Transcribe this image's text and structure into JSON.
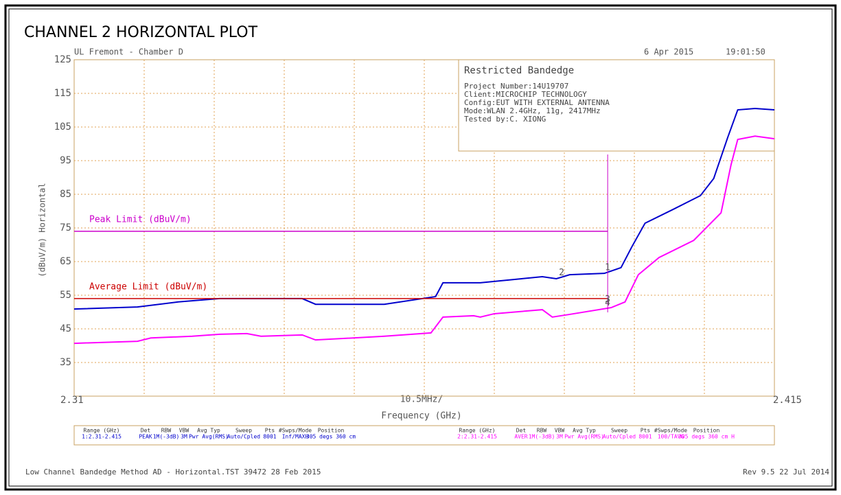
{
  "chart_data": {
    "type": "line",
    "title": "CHANNEL 2 HORIZONTAL PLOT",
    "header_left": "UL Fremont - Chamber D",
    "header_date": "6 Apr 2015",
    "header_time": "19:01:50",
    "info_title": "Restricted Bandedge",
    "info_lines": [
      "Project Number:14U19707",
      "Client:MICROCHIP TECHNOLOGY",
      "Config:EUT WITH EXTERNAL ANTENNA",
      "Mode:WLAN 2.4GHz, 11g, 2417MHz",
      "Tested by:C. XIONG"
    ],
    "y_label": "(dBuV/m) Horizontal",
    "x_label": "Frequency (GHz)",
    "x_scale_label": "10.5MHz/",
    "xlim": [
      2.31,
      2.415
    ],
    "xticks": [
      2.31,
      2.415
    ],
    "x_divisions": 10,
    "ylim": [
      25,
      125
    ],
    "yticks": [
      35,
      45,
      55,
      65,
      75,
      85,
      95,
      105,
      115,
      125
    ],
    "grid": true,
    "series": [
      {
        "color": "#0000cc",
        "x": [
          2.31,
          2.3195,
          2.3256,
          2.3318,
          2.3442,
          2.3462,
          2.3565,
          2.3642,
          2.3653,
          2.3709,
          2.3771,
          2.3802,
          2.3823,
          2.3843,
          2.3895,
          2.392,
          2.3936,
          2.3956,
          2.3998,
          2.4039,
          2.4059,
          2.408,
          2.4095,
          2.4121,
          2.415
        ],
        "values": [
          50.9,
          51.5,
          53,
          54,
          54,
          52.3,
          52.3,
          54.6,
          58.7,
          58.7,
          59.9,
          60.5,
          59.9,
          61.1,
          61.5,
          63.2,
          69.3,
          76.4,
          80.5,
          84.6,
          89.7,
          101.9,
          110.1,
          110.5,
          110.1
        ]
      },
      {
        "color": "#ff00ff",
        "x": [
          2.31,
          2.3195,
          2.3215,
          2.3277,
          2.3318,
          2.3359,
          2.338,
          2.3442,
          2.3462,
          2.3565,
          2.3635,
          2.3653,
          2.3699,
          2.3709,
          2.373,
          2.3802,
          2.3817,
          2.3843,
          2.3905,
          2.3926,
          2.3946,
          2.3977,
          2.4029,
          2.407,
          2.4085,
          2.4095,
          2.4121,
          2.415
        ],
        "values": [
          40.7,
          41.3,
          42.3,
          42.8,
          43.4,
          43.6,
          42.8,
          43.2,
          41.7,
          42.8,
          43.8,
          48.5,
          48.9,
          48.5,
          49.5,
          50.7,
          48.5,
          49.3,
          51.3,
          53,
          61.1,
          66.2,
          71.3,
          79.5,
          93.8,
          101.3,
          102.3,
          101.5
        ]
      },
      {
        "name": "Peak Limit (dBuV/m)",
        "color": "#cc00cc",
        "x": [
          2.31,
          2.39
        ],
        "values": [
          74,
          74
        ]
      },
      {
        "name": "Average Limit (dBuV/m)",
        "color": "#cc0000",
        "x": [
          2.31,
          2.39
        ],
        "values": [
          54,
          54
        ]
      }
    ],
    "markers": [
      {
        "label": "1",
        "x": 2.39,
        "y": 61.5
      },
      {
        "label": "2",
        "x": 2.3831,
        "y": 60
      },
      {
        "label": "3",
        "x": 2.39,
        "y": 52
      },
      {
        "label": "4",
        "x": 2.39,
        "y": 51
      }
    ],
    "settings_headers": [
      "Range (GHz)",
      "Det",
      "RBW",
      "VBW",
      "Avg Typ",
      "Sweep",
      "Pts",
      "#Swps/Mode",
      "Position"
    ],
    "settings_rows": [
      {
        "color": "#0000cc",
        "cells": [
          "1:2.31-2.415",
          "PEAK",
          "1M(-3dB)",
          "3M",
          "Pwr Avg(RMS)",
          "Auto/Cpled",
          "8001",
          "Inf/MAXH",
          "305 degs 360 cm"
        ]
      },
      {
        "color": "#ff00ff",
        "cells": [
          "2:2.31-2.415",
          "AVER",
          "1M(-3dB)",
          "3M",
          "Pwr Avg(RMS)",
          "Auto/Cpled",
          "8001",
          "100/TAVG",
          "305 degs 360 cm H"
        ]
      }
    ],
    "footer_left": "Low Channel Bandedge Method AD - Horizontal.TST 39472 28 Feb 2015",
    "footer_right": "Rev 9.5 22 Jul 2014"
  }
}
